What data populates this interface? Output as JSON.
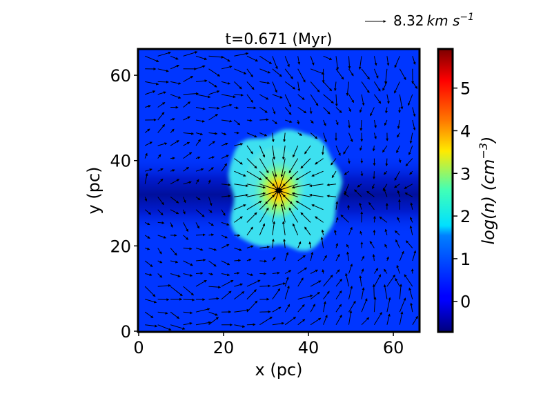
{
  "chart_data": {
    "type": "heatmap",
    "title": "t=0.671 (Myr)",
    "xlabel": "x (pc)",
    "ylabel": "y (pc)",
    "xlim": [
      0,
      66
    ],
    "ylim": [
      0,
      66
    ],
    "x_ticks": [
      "0",
      "20",
      "40",
      "60"
    ],
    "y_ticks": [
      "0",
      "20",
      "40",
      "60"
    ],
    "colorbar": {
      "label": "log(n) (cm⁻³)",
      "label_parts": [
        "log(n) (cm",
        "−3",
        ")"
      ],
      "range": [
        -0.7,
        5.9
      ],
      "ticks": [
        "0",
        "1",
        "2",
        "3",
        "4",
        "5"
      ],
      "colormap": "jet"
    },
    "vector_key": {
      "label_value": "8.32",
      "label_unit_parts": [
        "km s",
        "−1"
      ]
    },
    "features": {
      "background_log_n": 0.6,
      "filament": {
        "y_center": 32,
        "half_width": 6,
        "log_n": -0.3
      },
      "clump": {
        "x_range": [
          21.5,
          47
        ],
        "y_range": [
          19.5,
          46.5
        ],
        "log_n": 2.0
      },
      "core": {
        "x": 33,
        "y": 33,
        "log_n": 3.8
      }
    }
  }
}
